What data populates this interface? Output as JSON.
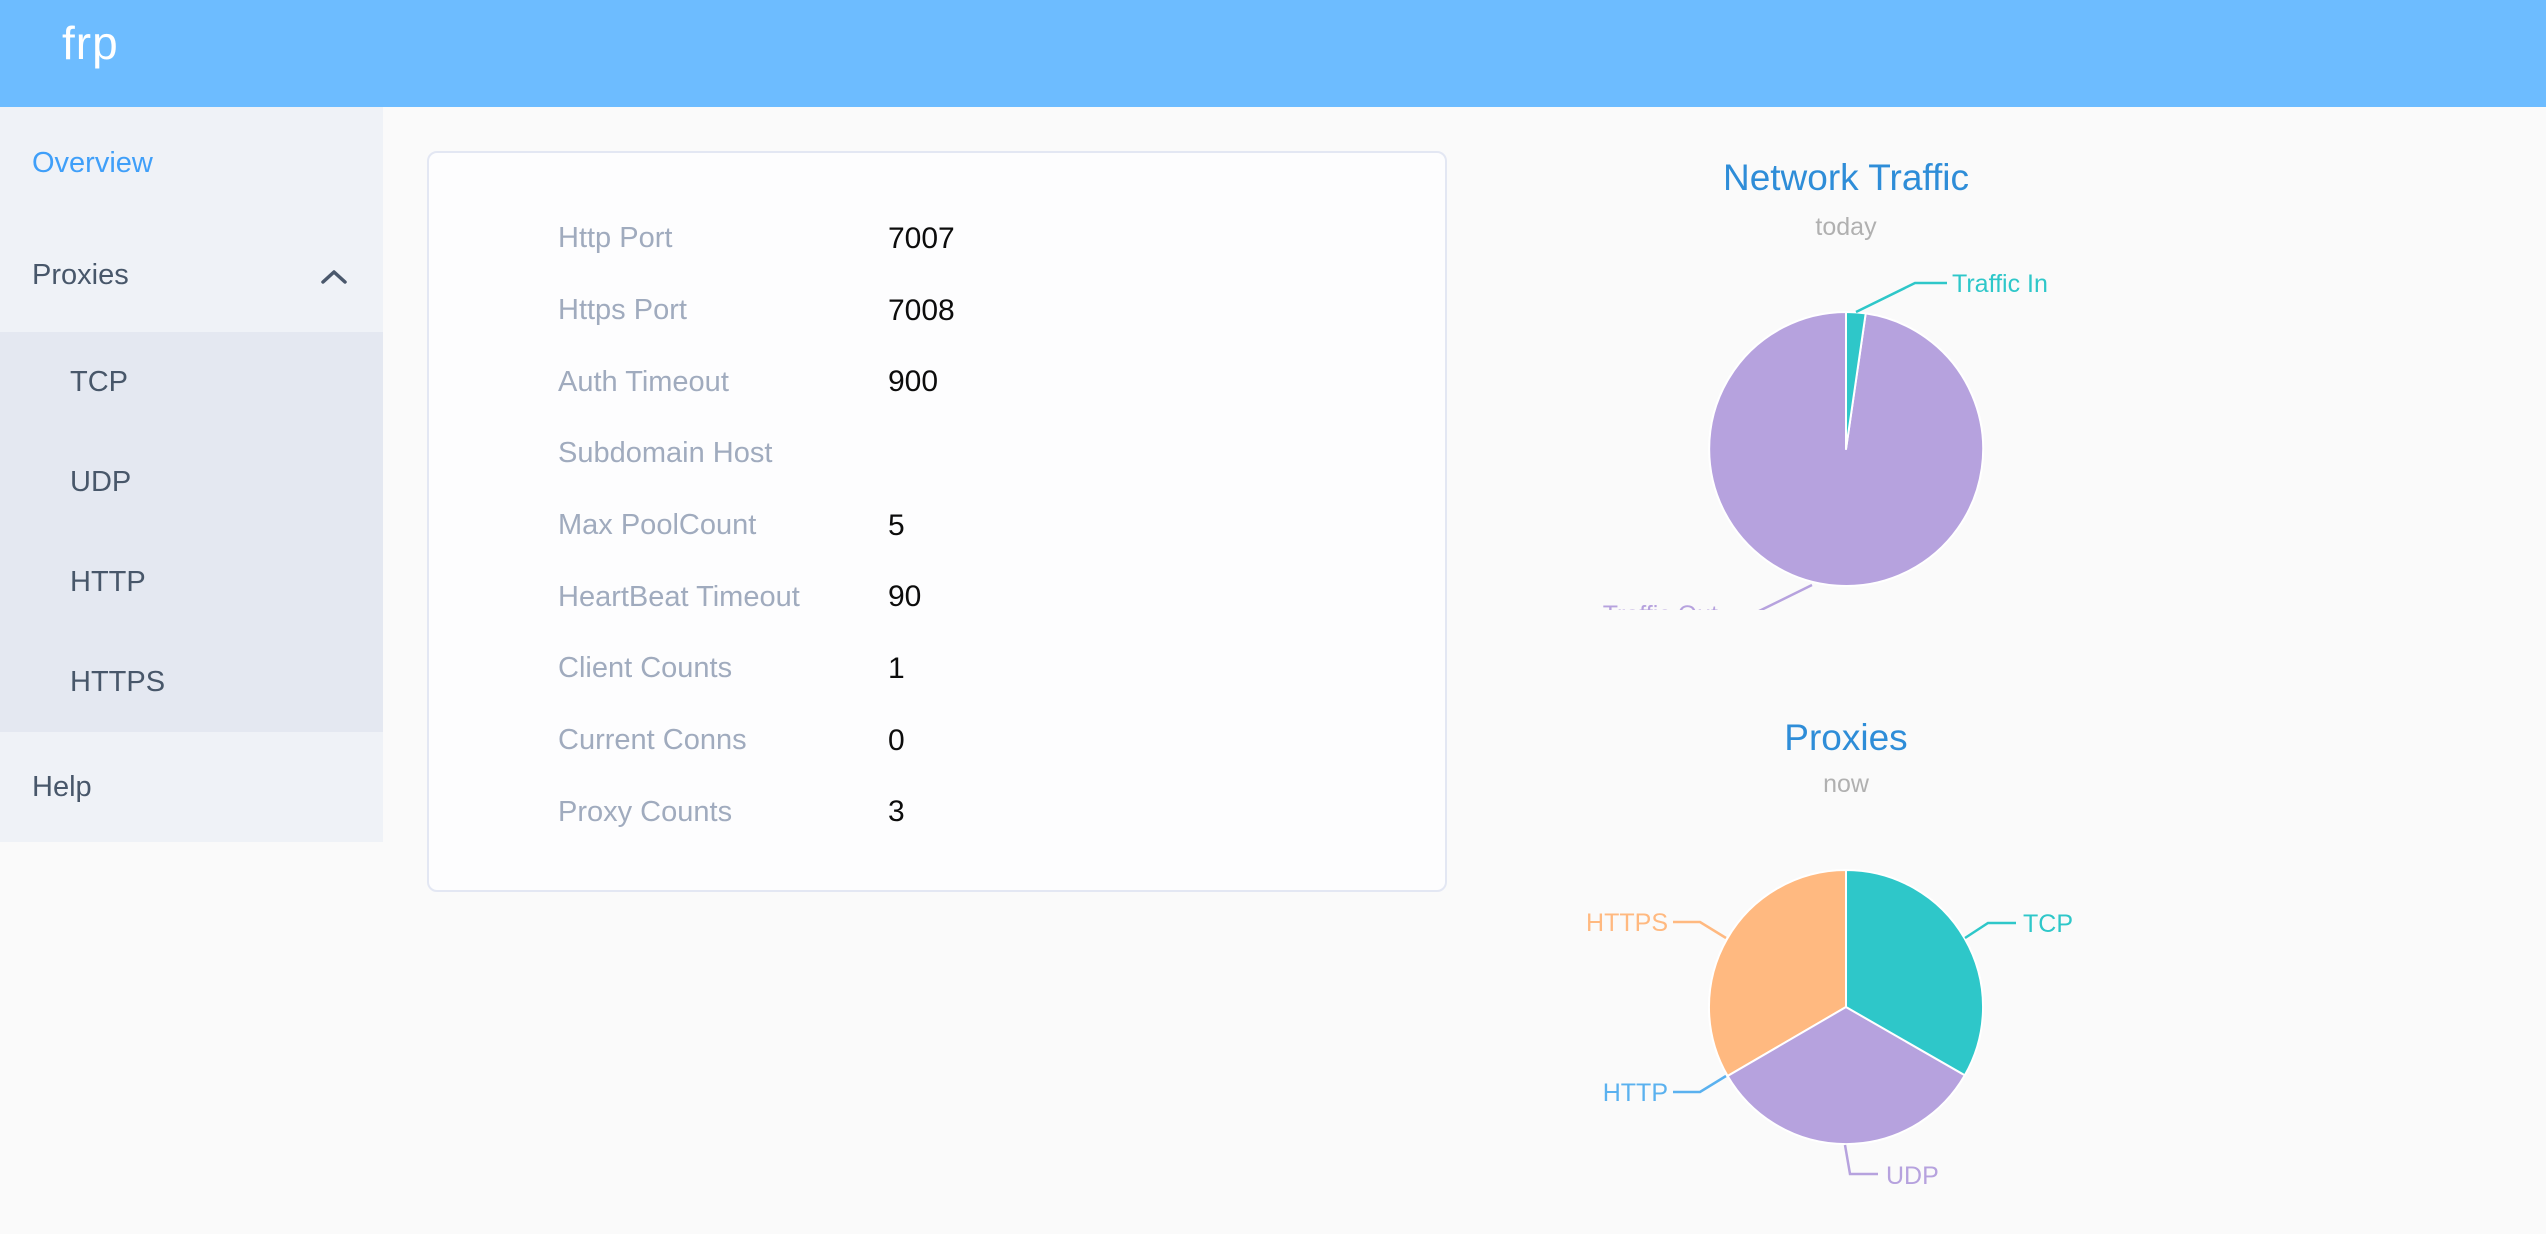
{
  "header": {
    "logo": "frp"
  },
  "sidebar": {
    "items": [
      {
        "label": "Overview",
        "active": true
      },
      {
        "label": "Proxies",
        "expanded": true
      },
      {
        "label": "Help",
        "active": false
      }
    ],
    "proxies_children": [
      "TCP",
      "UDP",
      "HTTP",
      "HTTPS"
    ]
  },
  "server_info": {
    "rows": [
      {
        "label": "Http Port",
        "value": "7007"
      },
      {
        "label": "Https Port",
        "value": "7008"
      },
      {
        "label": "Auth Timeout",
        "value": "900"
      },
      {
        "label": "Subdomain Host",
        "value": ""
      },
      {
        "label": "Max PoolCount",
        "value": "5"
      },
      {
        "label": "HeartBeat Timeout",
        "value": "90"
      },
      {
        "label": "Client Counts",
        "value": "1"
      },
      {
        "label": "Current Conns",
        "value": "0"
      },
      {
        "label": "Proxy Counts",
        "value": "3"
      }
    ]
  },
  "chart_data": [
    {
      "type": "pie",
      "title": "Network Traffic",
      "subtitle": "today",
      "labels_position": "outside",
      "slices": [
        {
          "label": "Traffic In",
          "value_pct": 2.3,
          "color": "#2ec7c9"
        },
        {
          "label": "Traffic Out",
          "value_pct": 97.7,
          "color": "#b6a2de"
        }
      ]
    },
    {
      "type": "pie",
      "title": "Proxies",
      "subtitle": "now",
      "labels_position": "outside",
      "slices": [
        {
          "label": "TCP",
          "value_pct": 33.3,
          "color": "#2ec7c9"
        },
        {
          "label": "UDP",
          "value_pct": 33.3,
          "color": "#b6a2de"
        },
        {
          "label": "HTTP",
          "value_pct": 0,
          "color": "#5ab1ef"
        },
        {
          "label": "HTTPS",
          "value_pct": 33.4,
          "color": "#ffb980"
        }
      ]
    }
  ],
  "colors": {
    "header_bg": "#6dbcff",
    "logo_text": "#ffffff",
    "sidebar_bg": "#eff2f7",
    "submenu_bg": "#e4e8f1",
    "menu_text": "#48576a",
    "menu_active": "#3f9ff9",
    "page_bg": "#fafafa",
    "card_bg": "#fdfdfe",
    "card_border": "#e3e7f3",
    "label_text": "#a0abbe",
    "value_text": "#0c0c0c",
    "title_blue": "#2e8dd8",
    "subtitle_gray": "#b0b0b0"
  }
}
